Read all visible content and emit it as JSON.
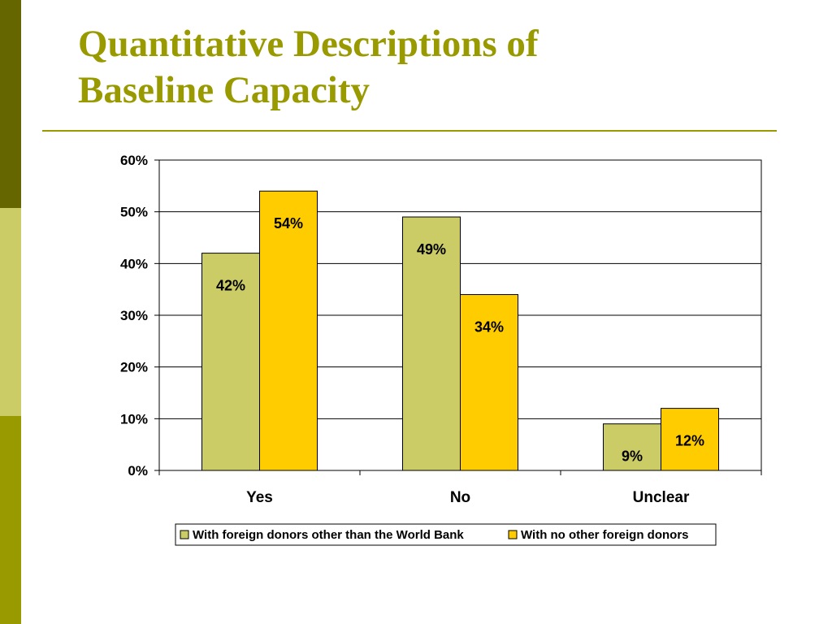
{
  "slide": {
    "title_line1": "Quantitative Descriptions of",
    "title_line2": "Baseline Capacity"
  },
  "colors": {
    "bar_dark": "#666600",
    "bar_light": "#cccc66",
    "bar_olive": "#999900",
    "title": "#999900",
    "series_1": "#cccc66",
    "series_2": "#ffcc00"
  },
  "chart_data": {
    "type": "bar",
    "title": "",
    "xlabel": "",
    "ylabel": "",
    "categories": [
      "Yes",
      "No",
      "Unclear"
    ],
    "series": [
      {
        "name": "With foreign donors other than the World Bank",
        "values": [
          42,
          49,
          9
        ],
        "labels": [
          "42%",
          "49%",
          "9%"
        ]
      },
      {
        "name": "With no other foreign donors",
        "values": [
          54,
          34,
          12
        ],
        "labels": [
          "54%",
          "34%",
          "12%"
        ]
      }
    ],
    "ylim": [
      0,
      60
    ],
    "yticks": [
      "0%",
      "10%",
      "20%",
      "30%",
      "40%",
      "50%",
      "60%"
    ],
    "grid": true,
    "legend": "bottom"
  }
}
